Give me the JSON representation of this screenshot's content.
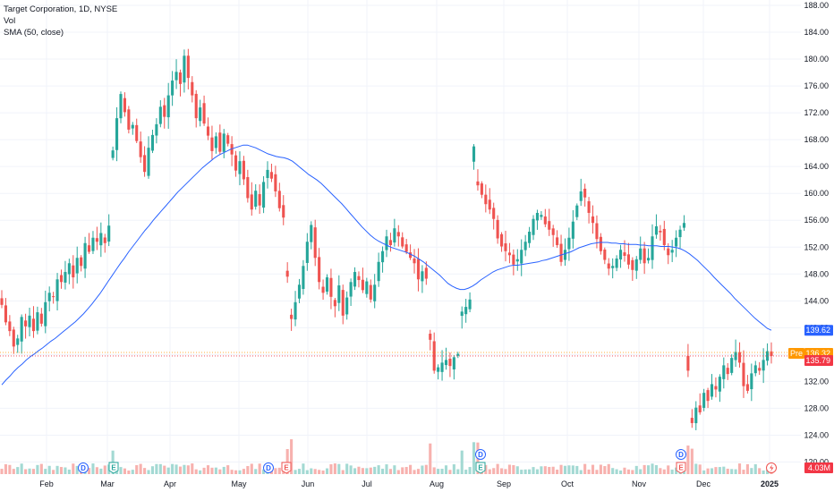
{
  "header": {
    "title": "Target Corporation, 1D, NYSE",
    "vol_label": "Vol",
    "sma_label": "SMA (50, close)"
  },
  "colors": {
    "up": "#26a69a",
    "down": "#ef5350",
    "sma": "#2962ff",
    "pre_tag": "#ff9800",
    "grid": "#f0f3fa"
  },
  "chart_data": {
    "type": "candlestick",
    "y_axis": {
      "ticks": [
        "188.00",
        "184.00",
        "180.00",
        "176.00",
        "172.00",
        "168.00",
        "164.00",
        "160.00",
        "156.00",
        "152.00",
        "148.00",
        "144.00",
        "140.00",
        "136.00",
        "132.00",
        "128.00",
        "124.00",
        "120.00"
      ],
      "range": [
        118.2,
        188.8
      ]
    },
    "x_axis": {
      "labels": [
        "Feb",
        "Mar",
        "Apr",
        "May",
        "Jun",
        "Jul",
        "Aug",
        "Sep",
        "Oct",
        "Nov",
        "Dec",
        "2025"
      ]
    },
    "price_tags": [
      {
        "label": "",
        "value": "139.62",
        "color": "#2962ff"
      },
      {
        "label": "Pre",
        "value": "136.32",
        "color": "#ff9800"
      },
      {
        "label": "",
        "value": "135.79",
        "color": "#f23645"
      }
    ],
    "volume_tag": "4.03M",
    "events": [
      {
        "type": "D",
        "month": "Feb"
      },
      {
        "type": "E",
        "month": "Mar"
      },
      {
        "type": "D",
        "month": "May"
      },
      {
        "type": "E",
        "month": "May"
      },
      {
        "type": "D",
        "month": "Aug"
      },
      {
        "type": "E",
        "month": "Aug"
      },
      {
        "type": "D",
        "month": "Nov"
      },
      {
        "type": "E",
        "month": "Nov"
      }
    ],
    "closes": [
      143.4,
      140.8,
      139.5,
      137.2,
      138.4,
      141.6,
      140.2,
      141.8,
      139.5,
      142.3,
      140.6,
      143.8,
      145.2,
      144.6,
      147.2,
      146.8,
      148.3,
      149.6,
      147.5,
      150.4,
      149.2,
      152.6,
      151.3,
      153.4,
      152.8,
      154.1,
      152.6,
      155.2,
      166.4,
      171.2,
      174.8,
      172.1,
      169.5,
      170.2,
      167.8,
      165.4,
      163.2,
      166.8,
      168.7,
      170.3,
      172.9,
      171.4,
      174.6,
      176.8,
      178.1,
      176.3,
      180.5,
      177.2,
      174.6,
      171.2,
      172.8,
      170.4,
      168.6,
      166.3,
      168.5,
      166.2,
      168.9,
      167.4,
      165.8,
      163.4,
      164.8,
      162.1,
      159.3,
      157.6,
      160.4,
      158.2,
      161.7,
      163.5,
      162.2,
      160.3,
      157.8,
      156.4,
      147.6,
      141.3,
      143.8,
      146.4,
      149.2,
      152.8,
      155.3,
      150.4,
      146.8,
      145.2,
      147.5,
      144.6,
      143.2,
      146.3,
      141.8,
      144.5,
      146.8,
      148.3,
      147.1,
      145.6,
      146.9,
      144.2,
      146.4,
      149.8,
      151.4,
      153.6,
      152.3,
      154.8,
      153.6,
      152.1,
      151.3,
      150.4,
      149.6,
      147.2,
      148.4,
      147.3,
      138.2,
      133.6,
      134.1,
      134.8,
      135.2,
      134.3,
      135.6,
      136.1,
      142.4,
      143.1,
      144.2,
      167.0,
      161.2,
      159.8,
      158.4,
      157.6,
      156.2,
      153.3,
      152.1,
      151.4,
      150.8,
      149.4,
      150.2,
      151.6,
      152.8,
      154.3,
      156.2,
      157.1,
      156.8,
      155.4,
      154.6,
      153.8,
      152.3,
      149.8,
      151.6,
      153.4,
      155.8,
      158.2,
      160.3,
      159.4,
      157.1,
      155.6,
      153.2,
      151.4,
      150.1,
      148.8,
      149.2,
      150.3,
      151.6,
      150.7,
      149.4,
      148.6,
      150.2,
      151.8,
      149.6,
      150.4,
      153.6,
      155.1,
      154.2,
      152.3,
      150.8,
      151.6,
      153.4,
      154.6,
      155.6,
      133.6,
      125.8,
      128.1,
      127.4,
      130.3,
      129.1,
      131.6,
      130.8,
      132.7,
      134.4,
      133.1,
      135.5,
      136.4,
      134.8,
      131.3,
      130.6,
      133.2,
      134.4,
      133.6,
      135.2,
      136.5,
      135.79
    ],
    "sma50": [
      131.5,
      132.2,
      132.8,
      133.5,
      134.1,
      134.6,
      135.2,
      135.7,
      136.1,
      136.6,
      137.0,
      137.5,
      138.0,
      138.4,
      138.9,
      139.4,
      139.9,
      140.4,
      140.9,
      141.5,
      142.1,
      142.8,
      143.5,
      144.3,
      145.1,
      146.0,
      146.9,
      147.8,
      148.7,
      149.6,
      150.4,
      151.3,
      152.1,
      152.9,
      153.7,
      154.5,
      155.2,
      156.0,
      156.7,
      157.4,
      158.1,
      158.8,
      159.5,
      160.2,
      160.8,
      161.4,
      162.0,
      162.6,
      163.2,
      163.8,
      164.3,
      164.8,
      165.3,
      165.7,
      166.0,
      166.3,
      166.6,
      166.8,
      167.0,
      167.2,
      167.2,
      167.0,
      166.8,
      166.5,
      166.2,
      165.9,
      165.7,
      165.5,
      165.4,
      165.3,
      165.1,
      164.8,
      164.3,
      163.8,
      163.3,
      162.8,
      162.4,
      162.0,
      161.5,
      160.9,
      160.3,
      159.7,
      159.1,
      158.5,
      157.8,
      157.1,
      156.4,
      155.7,
      155.0,
      154.4,
      153.8,
      153.3,
      152.9,
      152.6,
      152.3,
      152.0,
      151.8,
      151.6,
      151.4,
      151.2,
      150.9,
      150.6,
      150.2,
      149.8,
      149.3,
      148.8,
      148.3,
      147.8,
      147.2,
      146.6,
      146.2,
      145.9,
      145.7,
      145.7,
      145.9,
      146.2,
      146.6,
      147.1,
      147.5,
      147.9,
      148.3,
      148.6,
      148.8,
      149.0,
      149.2,
      149.3,
      149.3,
      149.4,
      149.5,
      149.6,
      149.7,
      149.8,
      150.0,
      150.1,
      150.3,
      150.5,
      150.7,
      150.9,
      151.1,
      151.3,
      151.6,
      151.9,
      152.1,
      152.3,
      152.5,
      152.6,
      152.7,
      152.7,
      152.7,
      152.6,
      152.6,
      152.5,
      152.5,
      152.4,
      152.4,
      152.4,
      152.3,
      152.3,
      152.2,
      152.2,
      152.2,
      152.1,
      152.1,
      152.1,
      152.0,
      151.9,
      151.7,
      151.4,
      151.0,
      150.5,
      150.0,
      149.4,
      148.8,
      148.2,
      147.5,
      146.9,
      146.3,
      145.7,
      145.1,
      144.4,
      143.8,
      143.2,
      142.6,
      142.0,
      141.4,
      140.9,
      140.4,
      139.9,
      139.62
    ]
  }
}
